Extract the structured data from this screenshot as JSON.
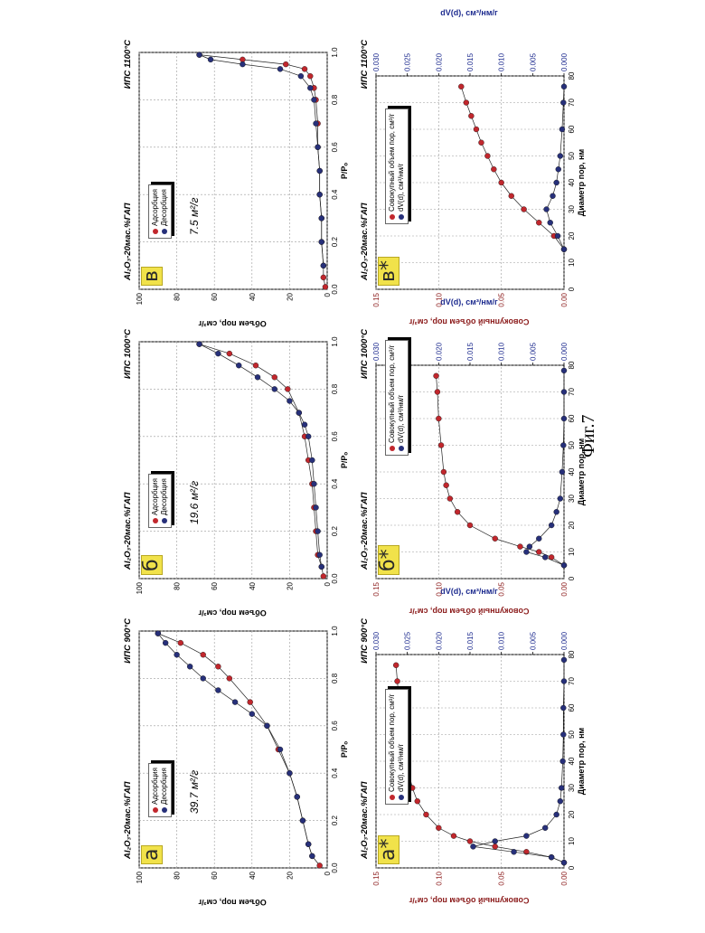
{
  "figure_caption": "Фиг.7",
  "colors": {
    "adsorption": "#c1272d",
    "desorption": "#27307a",
    "dv_axis": "#1d2b8f",
    "cum_axis": "#8b1a1a"
  },
  "isotherm_axes": {
    "ylabel": "Объем пор, см³/г",
    "xlabel": "P/Pₒ"
  },
  "pore_axes": {
    "ylabel_left": "Совокупный объем пор, см³/г",
    "ylabel_right": "dV(d), см³/нм/г",
    "xlabel": "Диаметр пор, нм"
  },
  "isotherm_legend": {
    "adsorption": "Адсорбция",
    "desorption": "Десорбция"
  },
  "pore_legend": {
    "cumulative": "Совокупный объем пор, см³/г",
    "dv": "dV(d), см³/нм/г"
  },
  "panels": [
    {
      "letter": "а",
      "sample": "Al₂O₃-20мас.%ГАП",
      "temperature": "ИПС 900°C",
      "area": "39.7 м²/г"
    },
    {
      "letter": "б",
      "sample": "Al₂O₃-20мас.%ГАП",
      "temperature": "ИПС 1000°C",
      "area": "19.6 м²/г"
    },
    {
      "letter": "в",
      "sample": "Al₂O₃-20мас.%ГАП",
      "temperature": "ИПС 1100°C",
      "area": "7.5 м²/г"
    },
    {
      "letter": "а*",
      "sample": "Al₂O₃-20мас.%ГАП",
      "temperature": "ИПС 900°C"
    },
    {
      "letter": "б*",
      "sample": "Al₂O₃-20мас.%ГАП",
      "temperature": "ИПС 1000°C"
    },
    {
      "letter": "в*",
      "sample": "Al₂O₃-20мас.%ГАП",
      "temperature": "ИПС 1100°C"
    }
  ],
  "chart_data": [
    {
      "type": "scatter",
      "panel": "а",
      "xlim": [
        0,
        1.0
      ],
      "ylim": [
        0,
        100
      ],
      "xticks": [
        "0.0",
        "0.2",
        "0.4",
        "0.6",
        "0.8",
        "1.0"
      ],
      "yticks": [
        "0",
        "20",
        "40",
        "60",
        "80",
        "100"
      ],
      "grid": true,
      "legend": "top-left",
      "series": [
        {
          "name": "Адсорбция",
          "x": [
            0.01,
            0.05,
            0.1,
            0.2,
            0.3,
            0.4,
            0.5,
            0.6,
            0.7,
            0.8,
            0.85,
            0.9,
            0.95,
            0.99
          ],
          "y": [
            4,
            8,
            10,
            13,
            16,
            20,
            26,
            32,
            41,
            52,
            58,
            66,
            78,
            90
          ]
        },
        {
          "name": "Десорбция",
          "x": [
            0.99,
            0.95,
            0.9,
            0.85,
            0.8,
            0.75,
            0.7,
            0.65,
            0.6,
            0.5,
            0.4,
            0.3,
            0.2,
            0.1,
            0.05
          ],
          "y": [
            90,
            86,
            80,
            73,
            66,
            58,
            49,
            40,
            32,
            25,
            20,
            16,
            13,
            10,
            8
          ]
        }
      ]
    },
    {
      "type": "scatter",
      "panel": "б",
      "xlim": [
        0,
        1.0
      ],
      "ylim": [
        0,
        100
      ],
      "xticks": [
        "0.0",
        "0.2",
        "0.4",
        "0.6",
        "0.8",
        "1.0"
      ],
      "yticks": [
        "0",
        "20",
        "40",
        "60",
        "80",
        "100"
      ],
      "grid": true,
      "legend": "top-left",
      "series": [
        {
          "name": "Адсорбция",
          "x": [
            0.01,
            0.05,
            0.1,
            0.2,
            0.3,
            0.4,
            0.5,
            0.6,
            0.7,
            0.8,
            0.85,
            0.9,
            0.95,
            0.99
          ],
          "y": [
            2,
            3,
            5,
            6,
            7,
            8,
            10,
            12,
            15,
            21,
            28,
            38,
            52,
            68
          ]
        },
        {
          "name": "Десорбция",
          "x": [
            0.99,
            0.95,
            0.9,
            0.85,
            0.8,
            0.75,
            0.7,
            0.65,
            0.6,
            0.5,
            0.4,
            0.3,
            0.2,
            0.1,
            0.05
          ],
          "y": [
            68,
            58,
            47,
            37,
            28,
            20,
            15,
            12,
            10,
            8,
            7,
            6,
            5,
            4,
            3
          ]
        }
      ]
    },
    {
      "type": "scatter",
      "panel": "в",
      "xlim": [
        0,
        1.0
      ],
      "ylim": [
        0,
        100
      ],
      "xticks": [
        "0.0",
        "0.2",
        "0.4",
        "0.6",
        "0.8",
        "1.0"
      ],
      "yticks": [
        "0",
        "20",
        "40",
        "60",
        "80",
        "100"
      ],
      "grid": true,
      "legend": "top-left",
      "series": [
        {
          "name": "Адсорбция",
          "x": [
            0.01,
            0.05,
            0.1,
            0.2,
            0.3,
            0.4,
            0.5,
            0.6,
            0.7,
            0.8,
            0.85,
            0.9,
            0.93,
            0.95,
            0.97,
            0.99
          ],
          "y": [
            1,
            2,
            2,
            3,
            3,
            4,
            4,
            5,
            5,
            6,
            7,
            9,
            12,
            22,
            45,
            68
          ]
        },
        {
          "name": "Десорбция",
          "x": [
            0.99,
            0.97,
            0.95,
            0.93,
            0.9,
            0.85,
            0.8,
            0.7,
            0.6,
            0.5,
            0.4,
            0.3,
            0.2,
            0.1
          ],
          "y": [
            68,
            62,
            45,
            25,
            14,
            9,
            7,
            6,
            5,
            4,
            4,
            3,
            3,
            2
          ]
        }
      ]
    },
    {
      "type": "scatter",
      "panel": "а*",
      "xlim": [
        0,
        80
      ],
      "ylim": [
        0,
        0.15
      ],
      "ylim_right": [
        0,
        0.03
      ],
      "xticks": [
        "0",
        "10",
        "20",
        "30",
        "40",
        "50",
        "60",
        "70",
        "80"
      ],
      "yticks": [
        "0.00",
        "0.05",
        "0.10",
        "0.15"
      ],
      "yticks_right": [
        "0.000",
        "0.005",
        "0.010",
        "0.015",
        "0.020",
        "0.025",
        "0.030"
      ],
      "grid": true,
      "legend": "top-center",
      "series": [
        {
          "name": "Совокупный объем пор, см³/г",
          "axis": "left",
          "x": [
            2,
            4,
            6,
            8,
            10,
            12,
            15,
            20,
            25,
            30,
            40,
            50,
            60,
            70,
            76
          ],
          "y": [
            0,
            0.01,
            0.03,
            0.055,
            0.075,
            0.088,
            0.1,
            0.11,
            0.117,
            0.121,
            0.126,
            0.129,
            0.131,
            0.133,
            0.134
          ]
        },
        {
          "name": "dV(d), см³/нм/г",
          "axis": "right",
          "x": [
            2,
            4,
            6,
            8,
            10,
            12,
            15,
            20,
            25,
            30,
            40,
            50,
            60,
            70,
            78
          ],
          "y": [
            0,
            0.002,
            0.008,
            0.0145,
            0.011,
            0.006,
            0.003,
            0.0012,
            0.0006,
            0.0004,
            0.0002,
            0.0001,
            0.0001,
            0.0,
            0.0
          ]
        }
      ]
    },
    {
      "type": "scatter",
      "panel": "б*",
      "xlim": [
        0,
        80
      ],
      "ylim": [
        0,
        0.15
      ],
      "ylim_right": [
        0,
        0.03
      ],
      "xticks": [
        "0",
        "10",
        "20",
        "30",
        "40",
        "50",
        "60",
        "70",
        "80"
      ],
      "yticks": [
        "0.00",
        "0.05",
        "0.10",
        "0.15"
      ],
      "yticks_right": [
        "0.000",
        "0.005",
        "0.010",
        "0.015",
        "0.020",
        "0.025",
        "0.030"
      ],
      "grid": true,
      "legend": "top-right",
      "series": [
        {
          "name": "Совокупный объем пор, см³/г",
          "axis": "left",
          "x": [
            5,
            8,
            10,
            12,
            15,
            20,
            25,
            30,
            35,
            40,
            50,
            60,
            70,
            76
          ],
          "y": [
            0,
            0.01,
            0.02,
            0.035,
            0.055,
            0.075,
            0.085,
            0.091,
            0.094,
            0.096,
            0.098,
            0.1,
            0.101,
            0.102
          ]
        },
        {
          "name": "dV(d), см³/нм/г",
          "axis": "right",
          "x": [
            5,
            8,
            10,
            12,
            15,
            20,
            25,
            30,
            40,
            50,
            60,
            70,
            78
          ],
          "y": [
            0,
            0.003,
            0.006,
            0.0055,
            0.004,
            0.002,
            0.0012,
            0.0006,
            0.0003,
            0.0001,
            0.0,
            0.0,
            0.0
          ]
        }
      ]
    },
    {
      "type": "scatter",
      "panel": "в*",
      "xlim": [
        0,
        80
      ],
      "ylim": [
        0,
        0.15
      ],
      "ylim_right": [
        0,
        0.03
      ],
      "xticks": [
        "0",
        "10",
        "20",
        "30",
        "40",
        "50",
        "60",
        "70",
        "80"
      ],
      "yticks": [
        "0.00",
        "0.05",
        "0.10",
        "0.15"
      ],
      "yticks_right": [
        "0.000",
        "0.005",
        "0.010",
        "0.015",
        "0.020",
        "0.025",
        "0.030"
      ],
      "grid": true,
      "legend": "top-center",
      "series": [
        {
          "name": "Совокупный объем пор, см³/г",
          "axis": "left",
          "x": [
            15,
            20,
            25,
            30,
            35,
            40,
            45,
            50,
            55,
            60,
            65,
            70,
            76
          ],
          "y": [
            0,
            0.008,
            0.02,
            0.032,
            0.042,
            0.05,
            0.056,
            0.061,
            0.066,
            0.07,
            0.074,
            0.078,
            0.082
          ]
        },
        {
          "name": "dV(d), см³/нм/г",
          "axis": "right",
          "x": [
            15,
            20,
            25,
            30,
            35,
            40,
            45,
            50,
            60,
            70,
            76
          ],
          "y": [
            0,
            0.001,
            0.0022,
            0.0028,
            0.0018,
            0.0012,
            0.0009,
            0.0006,
            0.0003,
            0.0001,
            0.0
          ]
        }
      ]
    }
  ]
}
